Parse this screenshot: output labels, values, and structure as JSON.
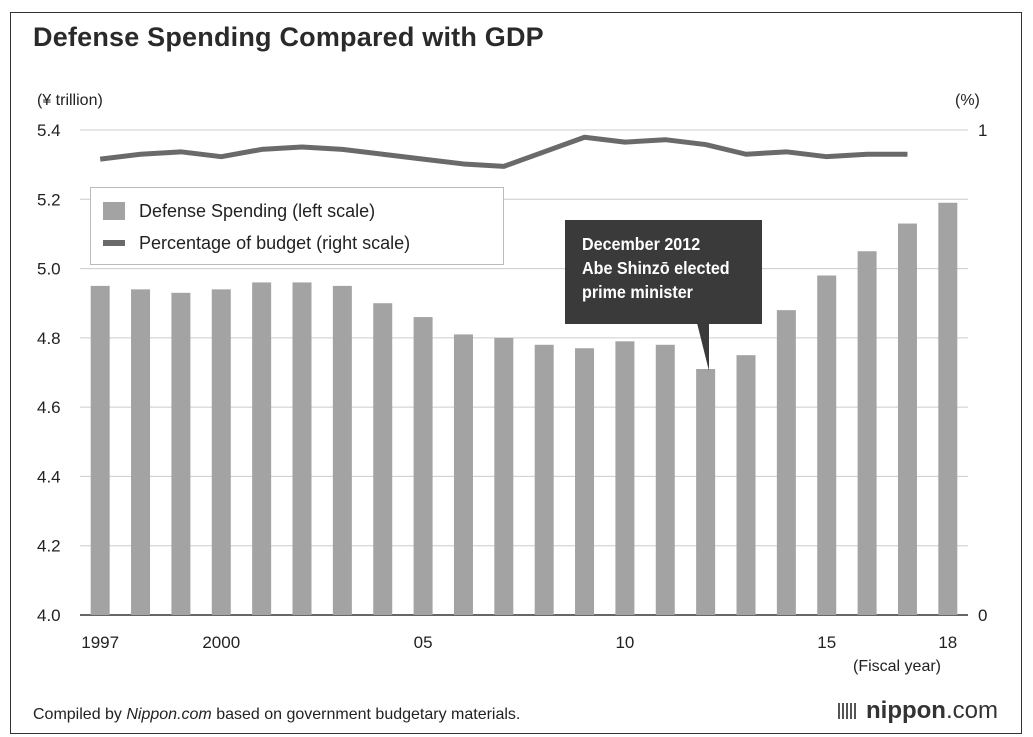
{
  "title": "Defense Spending Compared with GDP",
  "left_unit": "(¥ trillion)",
  "right_unit": "(%)",
  "x_axis_suffix": "(Fiscal year)",
  "legend": {
    "bar_label": "Defense Spending (left scale)",
    "line_label": "Percentage of budget (right scale)"
  },
  "annotation": {
    "line1": "December 2012",
    "line2": "Abe Shinzō elected",
    "line3": "prime minister"
  },
  "footer": {
    "prefix": "Compiled by ",
    "source": "Nippon.com",
    "suffix": " based on government budgetary materials."
  },
  "brand": {
    "name_bold": "nippon",
    "name_tail": ".com"
  },
  "colors": {
    "bar": "#a3a3a3",
    "line": "#6a6a6a",
    "grid": "#cccccc",
    "callout": "#3a3a3a"
  },
  "chart_data": {
    "type": "bar",
    "title": "Defense Spending Compared with GDP",
    "categories": [
      "1997",
      "1998",
      "1999",
      "2000",
      "2001",
      "2002",
      "2003",
      "2004",
      "2005",
      "2006",
      "2007",
      "2008",
      "2009",
      "2010",
      "2011",
      "2012",
      "2013",
      "2014",
      "2015",
      "2016",
      "2017",
      "2018"
    ],
    "x_tick_labels": [
      {
        "year": "1997",
        "label": "1997"
      },
      {
        "year": "2000",
        "label": "2000"
      },
      {
        "year": "2005",
        "label": "05"
      },
      {
        "year": "2010",
        "label": "10"
      },
      {
        "year": "2015",
        "label": "15"
      },
      {
        "year": "2018",
        "label": "18"
      }
    ],
    "y_left_ticks": [
      "4.0",
      "4.2",
      "4.4",
      "4.6",
      "4.8",
      "5.0",
      "5.2",
      "5.4"
    ],
    "y_right_ticks": [
      "0",
      "1"
    ],
    "ylim": [
      4.0,
      5.4
    ],
    "y2lim": [
      0,
      1
    ],
    "grid": true,
    "legend_position": "top-left",
    "series": [
      {
        "name": "Defense Spending (left scale)",
        "type": "bar",
        "axis": "left",
        "values": [
          4.95,
          4.94,
          4.93,
          4.94,
          4.96,
          4.96,
          4.95,
          4.9,
          4.86,
          4.81,
          4.8,
          4.78,
          4.77,
          4.79,
          4.78,
          4.71,
          4.75,
          4.88,
          4.98,
          5.05,
          5.13,
          5.19
        ]
      },
      {
        "name": "Percentage of budget (right scale)",
        "type": "line",
        "axis": "right",
        "values": [
          0.94,
          0.95,
          0.955,
          0.945,
          0.96,
          0.965,
          0.96,
          0.95,
          0.94,
          0.93,
          0.925,
          0.955,
          0.985,
          0.975,
          0.98,
          0.97,
          0.95,
          0.955,
          0.945,
          0.95,
          0.95,
          null
        ]
      }
    ]
  }
}
